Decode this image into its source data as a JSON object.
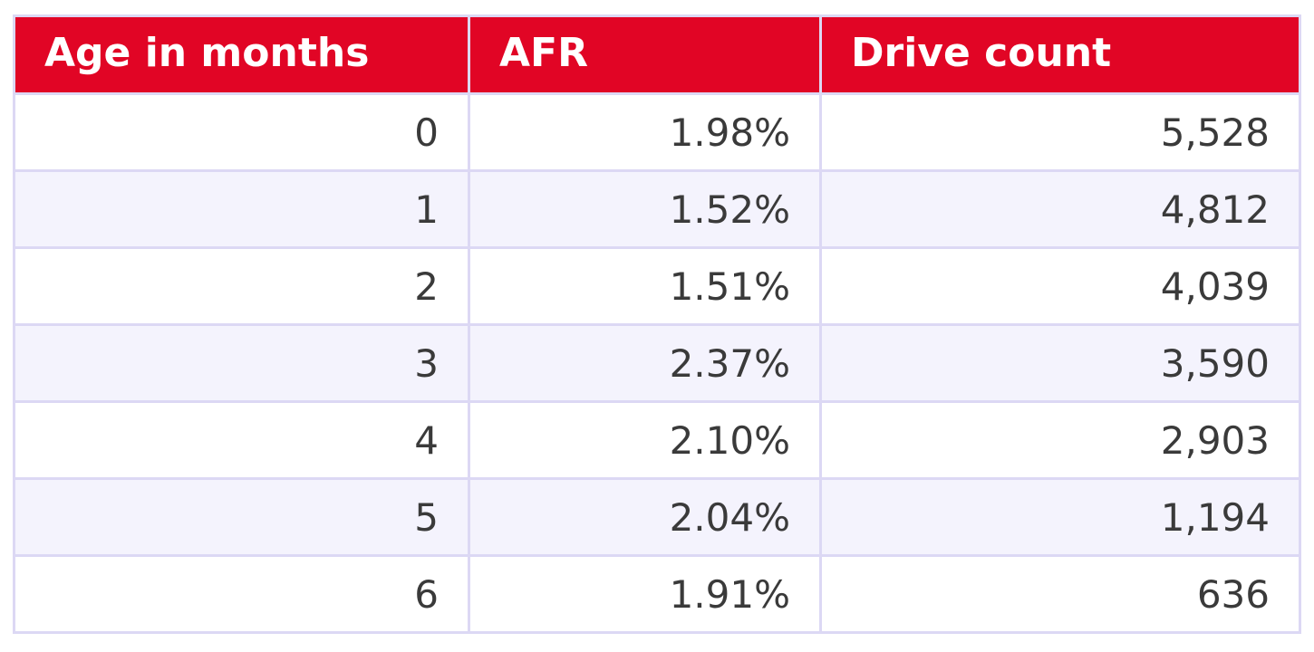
{
  "chart_data": {
    "type": "table",
    "columns": [
      "Age in months",
      "AFR",
      "Drive count"
    ],
    "rows": [
      [
        "0",
        "1.98%",
        "5,528"
      ],
      [
        "1",
        "1.52%",
        "4,812"
      ],
      [
        "2",
        "1.51%",
        "4,039"
      ],
      [
        "3",
        "2.37%",
        "3,590"
      ],
      [
        "4",
        "2.10%",
        "2,903"
      ],
      [
        "5",
        "2.04%",
        "1,194"
      ],
      [
        "6",
        "1.91%",
        "636"
      ]
    ],
    "colors": {
      "header_bg": "#e10525",
      "header_text": "#ffffff",
      "border": "#dcd8f4",
      "row_alt_bg": "#f4f3fd",
      "cell_text": "#3a3a3a"
    }
  }
}
